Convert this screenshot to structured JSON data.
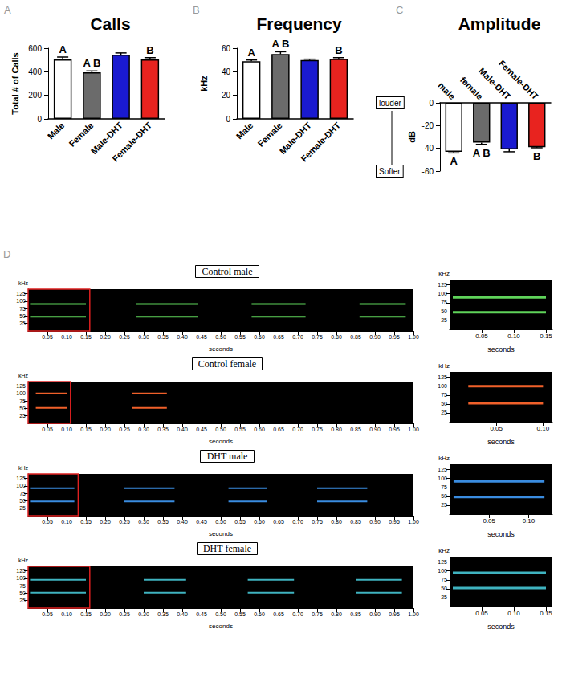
{
  "chart_data": [
    {
      "type": "bar",
      "panel": "A",
      "title": "Calls",
      "ylabel": "Total # of Calls",
      "categories": [
        "Male",
        "Female",
        "Male-DHT",
        "Female-DHT"
      ],
      "values": [
        505,
        395,
        545,
        505
      ],
      "errors": [
        20,
        12,
        15,
        15
      ],
      "group_labels": [
        "A",
        "A B",
        null,
        "B"
      ],
      "colors": [
        "#ffffff",
        "#6b6b6b",
        "#1a1ad0",
        "#e8231f"
      ],
      "ylim": [
        0,
        600
      ],
      "yticks": [
        0,
        200,
        400,
        600
      ],
      "grid": false
    },
    {
      "type": "bar",
      "panel": "B",
      "title": "Frequency",
      "ylabel": "kHz",
      "categories": [
        "Male",
        "Female",
        "Male-DHT",
        "Female-DHT"
      ],
      "values": [
        49,
        55,
        50,
        51
      ],
      "errors": [
        1,
        2,
        0.7,
        1
      ],
      "group_labels": [
        "A",
        "A B",
        null,
        "B"
      ],
      "colors": [
        "#ffffff",
        "#6b6b6b",
        "#1a1ad0",
        "#e8231f"
      ],
      "ylim": [
        0,
        60
      ],
      "yticks": [
        0,
        20,
        40,
        60
      ],
      "grid": false
    },
    {
      "type": "bar",
      "panel": "C",
      "title": "Amplitude",
      "ylabel": "dB",
      "annotations": [
        "louder",
        "Softer"
      ],
      "categories": [
        "male",
        "female",
        "Male-DHT",
        "Female-DHT"
      ],
      "values": [
        -43,
        -35,
        -41,
        -39
      ],
      "errors": [
        1,
        1.5,
        2,
        0.5
      ],
      "group_labels": [
        "A",
        "A B",
        null,
        "B"
      ],
      "colors": [
        "#ffffff",
        "#6b6b6b",
        "#1a1ad0",
        "#e8231f"
      ],
      "ylim": [
        -60,
        0
      ],
      "yticks": [
        -60,
        -40,
        -20,
        0
      ],
      "grid": false
    },
    {
      "type": "spectrogram",
      "panel": "D",
      "title": "Control male",
      "xlabel": "seconds",
      "ylabel": "kHz",
      "color": "#5fd35a",
      "harmonics_kHz": [
        48,
        90
      ],
      "calls": [
        [
          0.005,
          0.15
        ],
        [
          0.28,
          0.44
        ],
        [
          0.58,
          0.72
        ],
        [
          0.86,
          0.98
        ]
      ],
      "xlim": [
        0,
        1
      ],
      "ylim": [
        0,
        140
      ],
      "yticks": [
        25,
        50,
        75,
        100,
        125
      ],
      "grid": false,
      "xticks": [
        0.05,
        {
          "value": 0.1,
          "label": "0.10"
        },
        0.15,
        {
          "value": 0.2,
          "label": "0.20"
        },
        0.25,
        {
          "value": 0.3,
          "label": "0.30"
        },
        0.35,
        {
          "value": 0.4,
          "label": "0.40"
        },
        0.45,
        {
          "value": 0.5,
          "label": "0.50"
        },
        0.55,
        {
          "value": 0.6,
          "label": "0.60"
        },
        0.65,
        {
          "value": 0.7,
          "label": "0.70"
        },
        0.75,
        {
          "value": 0.8,
          "label": "0.80"
        },
        0.85,
        {
          "value": 0.9,
          "label": "0.90"
        },
        0.95,
        {
          "value": 1,
          "label": "1.00"
        }
      ],
      "inset": {
        "xlabel": "seconds",
        "ylabel": "kHz",
        "xlim": [
          0,
          0.16
        ],
        "xticks": [
          0.05,
          {
            "value": 0.1,
            "label": "0.10"
          },
          0.15
        ],
        "ylim": [
          0,
          140
        ],
        "yticks": [
          25,
          50,
          75,
          100,
          125
        ]
      }
    },
    {
      "type": "spectrogram",
      "title": "Control female",
      "xlabel": "seconds",
      "ylabel": "kHz",
      "color": "#f0602a",
      "harmonics_kHz": [
        52,
        100
      ],
      "calls": [
        [
          0.02,
          0.1
        ],
        [
          0.27,
          0.36
        ]
      ],
      "xlim": [
        0,
        1
      ],
      "ylim": [
        0,
        140
      ],
      "yticks": [
        25,
        50,
        75,
        100,
        125
      ],
      "grid": false,
      "xticks": [
        0.05,
        {
          "value": 0.1,
          "label": "0.10"
        },
        0.15,
        {
          "value": 0.2,
          "label": "0.20"
        },
        0.25,
        {
          "value": 0.3,
          "label": "0.30"
        },
        0.35,
        {
          "value": 0.4,
          "label": "0.40"
        },
        0.45,
        {
          "value": 0.5,
          "label": "0.50"
        },
        0.55,
        {
          "value": 0.6,
          "label": "0.60"
        },
        0.65,
        {
          "value": 0.7,
          "label": "0.70"
        },
        0.75,
        {
          "value": 0.8,
          "label": "0.80"
        },
        0.85,
        {
          "value": 0.9,
          "label": "0.90"
        },
        0.95,
        {
          "value": 1,
          "label": "1.00"
        }
      ],
      "inset": {
        "xlabel": "seconds",
        "ylabel": "kHz",
        "xlim": [
          0,
          0.11
        ],
        "xticks": [
          0.05,
          {
            "value": 0.1,
            "label": "0.10"
          }
        ],
        "ylim": [
          0,
          140
        ],
        "yticks": [
          25,
          50,
          75,
          100,
          125
        ]
      }
    },
    {
      "type": "spectrogram",
      "title": "DHT male",
      "xlabel": "seconds",
      "ylabel": "kHz",
      "color": "#3a8ce0",
      "harmonics_kHz": [
        48,
        92
      ],
      "calls": [
        [
          0.005,
          0.12
        ],
        [
          0.25,
          0.38
        ],
        [
          0.52,
          0.62
        ],
        [
          0.75,
          0.88
        ]
      ],
      "xlim": [
        0,
        1
      ],
      "ylim": [
        0,
        140
      ],
      "yticks": [
        25,
        50,
        75,
        100,
        125
      ],
      "grid": false,
      "xticks": [
        0.05,
        {
          "value": 0.1,
          "label": "0.10"
        },
        0.15,
        {
          "value": 0.2,
          "label": "0.20"
        },
        0.25,
        {
          "value": 0.3,
          "label": "0.30"
        },
        0.35,
        {
          "value": 0.4,
          "label": "0.40"
        },
        0.45,
        {
          "value": 0.5,
          "label": "0.50"
        },
        0.55,
        {
          "value": 0.6,
          "label": "0.60"
        },
        0.65,
        {
          "value": 0.7,
          "label": "0.70"
        },
        0.75,
        {
          "value": 0.8,
          "label": "0.80"
        },
        0.85,
        {
          "value": 0.9,
          "label": "0.90"
        },
        0.95,
        {
          "value": 1,
          "label": "1.00"
        }
      ],
      "inset": {
        "xlabel": "seconds",
        "ylabel": "kHz",
        "xlim": [
          0,
          0.13
        ],
        "xticks": [
          0.05,
          {
            "value": 0.1,
            "label": "0.10"
          }
        ],
        "ylim": [
          0,
          140
        ],
        "yticks": [
          25,
          50,
          75,
          100,
          125
        ]
      }
    },
    {
      "type": "spectrogram",
      "title": "DHT female",
      "xlabel": "seconds",
      "ylabel": "kHz",
      "color": "#3fb3c0",
      "harmonics_kHz": [
        52,
        95
      ],
      "calls": [
        [
          0.005,
          0.15
        ],
        [
          0.3,
          0.41
        ],
        [
          0.57,
          0.69
        ],
        [
          0.85,
          0.97
        ]
      ],
      "xlim": [
        0,
        1
      ],
      "ylim": [
        0,
        140
      ],
      "yticks": [
        25,
        50,
        75,
        100,
        125
      ],
      "grid": false,
      "xticks": [
        0.05,
        {
          "value": 0.1,
          "label": "0.10"
        },
        0.15,
        {
          "value": 0.2,
          "label": "0.20"
        },
        0.25,
        {
          "value": 0.3,
          "label": "0.30"
        },
        0.35,
        {
          "value": 0.4,
          "label": "0.40"
        },
        0.45,
        {
          "value": 0.5,
          "label": "0.50"
        },
        0.55,
        {
          "value": 0.6,
          "label": "0.60"
        },
        0.65,
        {
          "value": 0.7,
          "label": "0.70"
        },
        0.75,
        {
          "value": 0.8,
          "label": "0.80"
        },
        0.85,
        {
          "value": 0.9,
          "label": "0.90"
        },
        0.95,
        {
          "value": 1,
          "label": "1.00"
        }
      ],
      "inset": {
        "xlabel": "seconds",
        "ylabel": "kHz",
        "xlim": [
          0,
          0.16
        ],
        "xticks": [
          0.05,
          {
            "value": 0.1,
            "label": "0.10"
          },
          0.15
        ],
        "ylim": [
          0,
          140
        ],
        "yticks": [
          25,
          50,
          75,
          100,
          125
        ]
      }
    }
  ]
}
